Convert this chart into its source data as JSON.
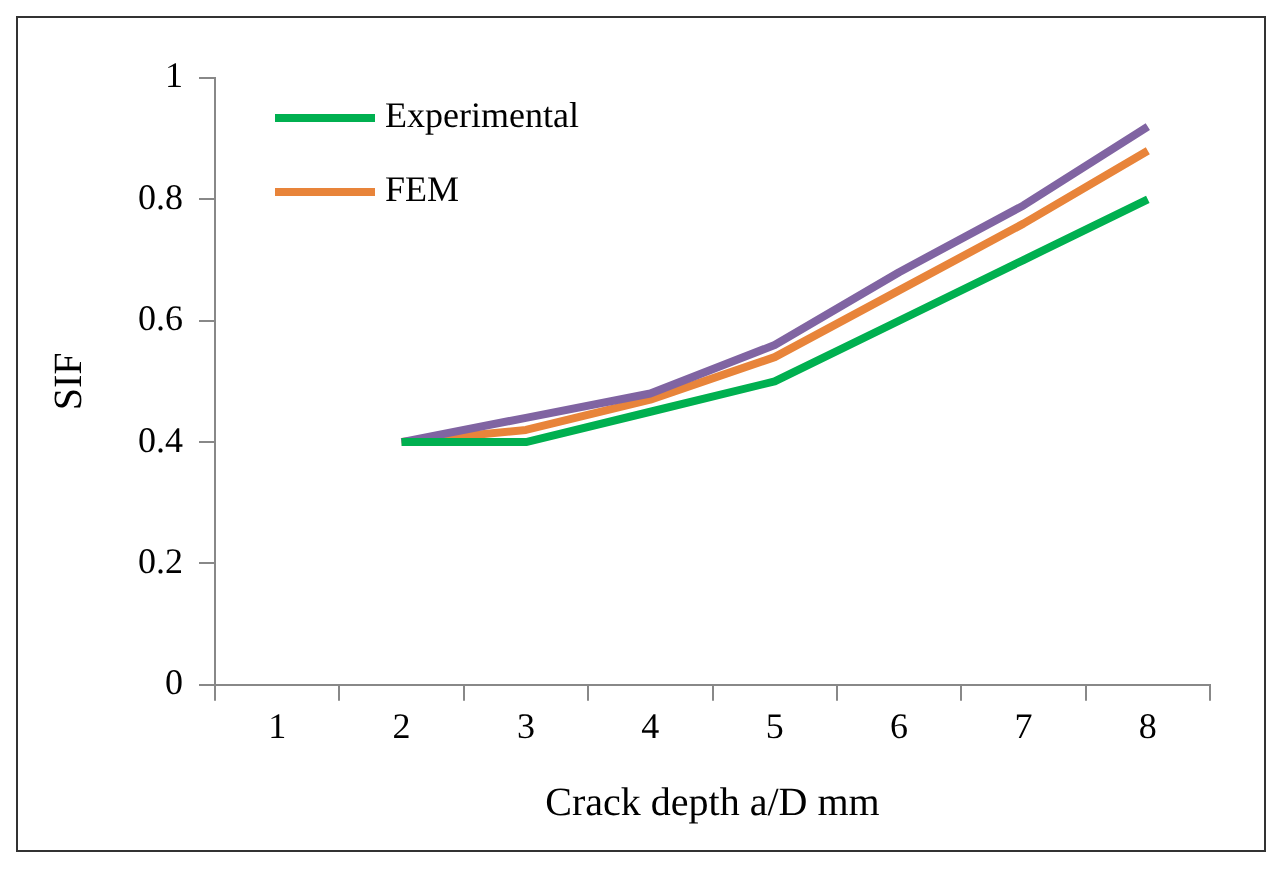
{
  "chart_data": {
    "type": "line",
    "xlabel": "Crack depth a/D mm",
    "ylabel": "SIF",
    "categories": [
      "1",
      "2",
      "3",
      "4",
      "5",
      "6",
      "7",
      "8"
    ],
    "series": [
      {
        "name": "Experimental",
        "color": "#00b050",
        "values": [
          null,
          0.4,
          0.4,
          0.45,
          0.5,
          0.6,
          0.7,
          0.8
        ]
      },
      {
        "color": "#8064a2",
        "values": [
          null,
          0.4,
          0.44,
          0.48,
          0.56,
          0.68,
          0.79,
          0.92
        ]
      },
      {
        "name": "FEM",
        "color": "#e8843a",
        "values": [
          null,
          0.4,
          0.42,
          0.47,
          0.54,
          0.65,
          0.76,
          0.88
        ]
      }
    ],
    "ylim": [
      0,
      1
    ],
    "yticks": [
      0,
      0.2,
      0.4,
      0.6,
      0.8,
      1
    ],
    "grid": false,
    "legend": "top left",
    "marker": "none",
    "line_style": "solid"
  }
}
